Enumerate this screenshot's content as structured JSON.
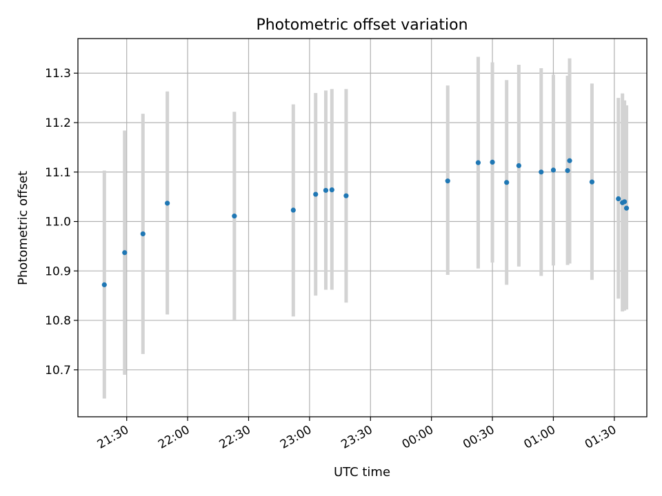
{
  "chart_data": {
    "type": "scatter",
    "title": "Photometric offset variation",
    "xlabel": "UTC time",
    "ylabel": "Photometric offset",
    "xlim": [
      "21:06",
      "01:46"
    ],
    "ylim": [
      10.605,
      11.37
    ],
    "grid": true,
    "x_ticks": [
      "21:30",
      "22:00",
      "22:30",
      "23:00",
      "23:30",
      "00:00",
      "00:30",
      "01:00",
      "01:30"
    ],
    "y_ticks": [
      "10.7",
      "10.8",
      "10.9",
      "11.0",
      "11.1",
      "11.2",
      "11.3"
    ],
    "series": [
      {
        "x": [
          "21:19",
          "21:29",
          "21:38",
          "21:50",
          "22:23",
          "22:52",
          "23:03",
          "23:08",
          "23:11",
          "23:18",
          "00:08",
          "00:23",
          "00:30",
          "00:37",
          "00:43",
          "00:54",
          "01:00",
          "01:07",
          "01:08",
          "01:19",
          "01:32",
          "01:34",
          "01:35",
          "01:36"
        ],
        "y": [
          10.872,
          10.937,
          10.975,
          11.037,
          11.011,
          11.023,
          11.055,
          11.063,
          11.064,
          11.052,
          11.082,
          11.119,
          11.12,
          11.079,
          11.113,
          11.1,
          11.104,
          11.103,
          11.123,
          11.08,
          11.046,
          11.038,
          11.04,
          11.027
        ],
        "err_low": [
          10.642,
          10.69,
          10.732,
          10.812,
          10.8,
          10.808,
          10.85,
          10.862,
          10.862,
          10.836,
          10.892,
          10.905,
          10.917,
          10.872,
          10.909,
          10.89,
          10.911,
          10.912,
          10.915,
          10.882,
          10.844,
          10.818,
          10.82,
          10.822
        ],
        "err_high": [
          11.103,
          11.184,
          11.218,
          11.263,
          11.222,
          11.237,
          11.26,
          11.265,
          11.268,
          11.268,
          11.275,
          11.333,
          11.322,
          11.286,
          11.317,
          11.31,
          11.297,
          11.295,
          11.33,
          11.279,
          11.25,
          11.259,
          11.245,
          11.235
        ]
      }
    ],
    "colors": {
      "points": "#1f77b4",
      "errorbars": "#d3d3d3",
      "grid": "#b0b0b0"
    }
  }
}
